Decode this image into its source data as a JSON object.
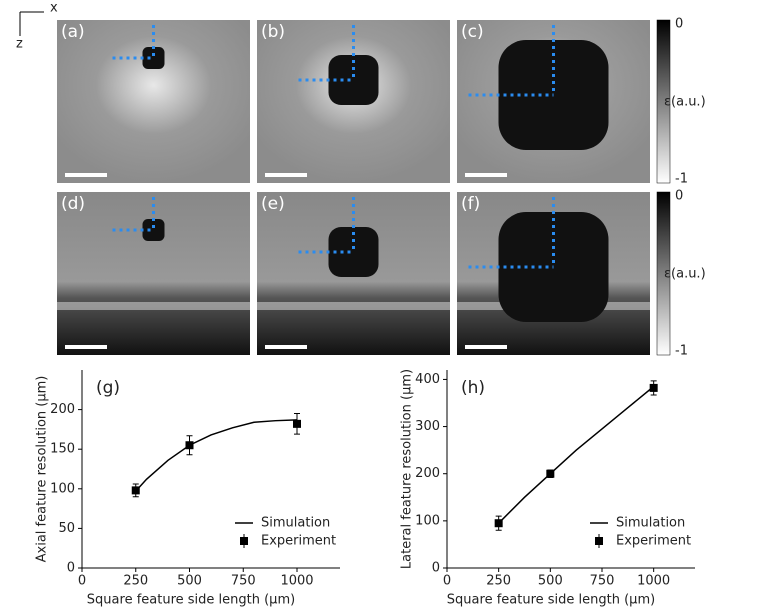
{
  "figure": {
    "axis_x": "x",
    "axis_z": "z",
    "panel_labels": [
      "(a)",
      "(b)",
      "(c)",
      "(d)",
      "(e)",
      "(f)"
    ],
    "colorbars": [
      {
        "top": "0",
        "bottom": "-1",
        "label": "ε(a.u.)"
      },
      {
        "top": "0",
        "bottom": "-1",
        "label": "ε(a.u.)"
      }
    ]
  },
  "chart_data": [
    {
      "type": "line",
      "title": "(g)",
      "x_label": "Square feature side length (µm)",
      "y_label": "Axial feature resolution (µm)",
      "xlim": [
        0,
        1200
      ],
      "xticks": [
        0,
        250,
        500,
        750,
        1000
      ],
      "ylim": [
        0,
        250
      ],
      "yticks": [
        0,
        50,
        100,
        150,
        200
      ],
      "legend": "lower right",
      "series": [
        {
          "name": "Simulation",
          "color": "#000000",
          "x": [
            250,
            300,
            400,
            500,
            600,
            700,
            800,
            900,
            1000
          ],
          "values": [
            97,
            112,
            136,
            155,
            168,
            177,
            184,
            186,
            187
          ]
        },
        {
          "name": "Experiment",
          "color": "#000000",
          "x": [
            250,
            500,
            1000
          ],
          "values": [
            98,
            155,
            182
          ],
          "errors": [
            8,
            12,
            13
          ]
        }
      ]
    },
    {
      "type": "line",
      "title": "(h)",
      "x_label": "Square feature side length (µm)",
      "y_label": "Lateral feature resolution (µm)",
      "xlim": [
        0,
        1200
      ],
      "xticks": [
        0,
        250,
        500,
        750,
        1000
      ],
      "ylim": [
        0,
        420
      ],
      "yticks": [
        0,
        100,
        200,
        300,
        400
      ],
      "legend": "lower right",
      "series": [
        {
          "name": "Simulation",
          "color": "#000000",
          "x": [
            250,
            375,
            500,
            625,
            750,
            875,
            1000
          ],
          "values": [
            95,
            150,
            200,
            250,
            295,
            340,
            385
          ]
        },
        {
          "name": "Experiment",
          "color": "#000000",
          "x": [
            250,
            500,
            1000
          ],
          "values": [
            95,
            200,
            382
          ],
          "errors": [
            15,
            8,
            15
          ]
        }
      ]
    }
  ]
}
